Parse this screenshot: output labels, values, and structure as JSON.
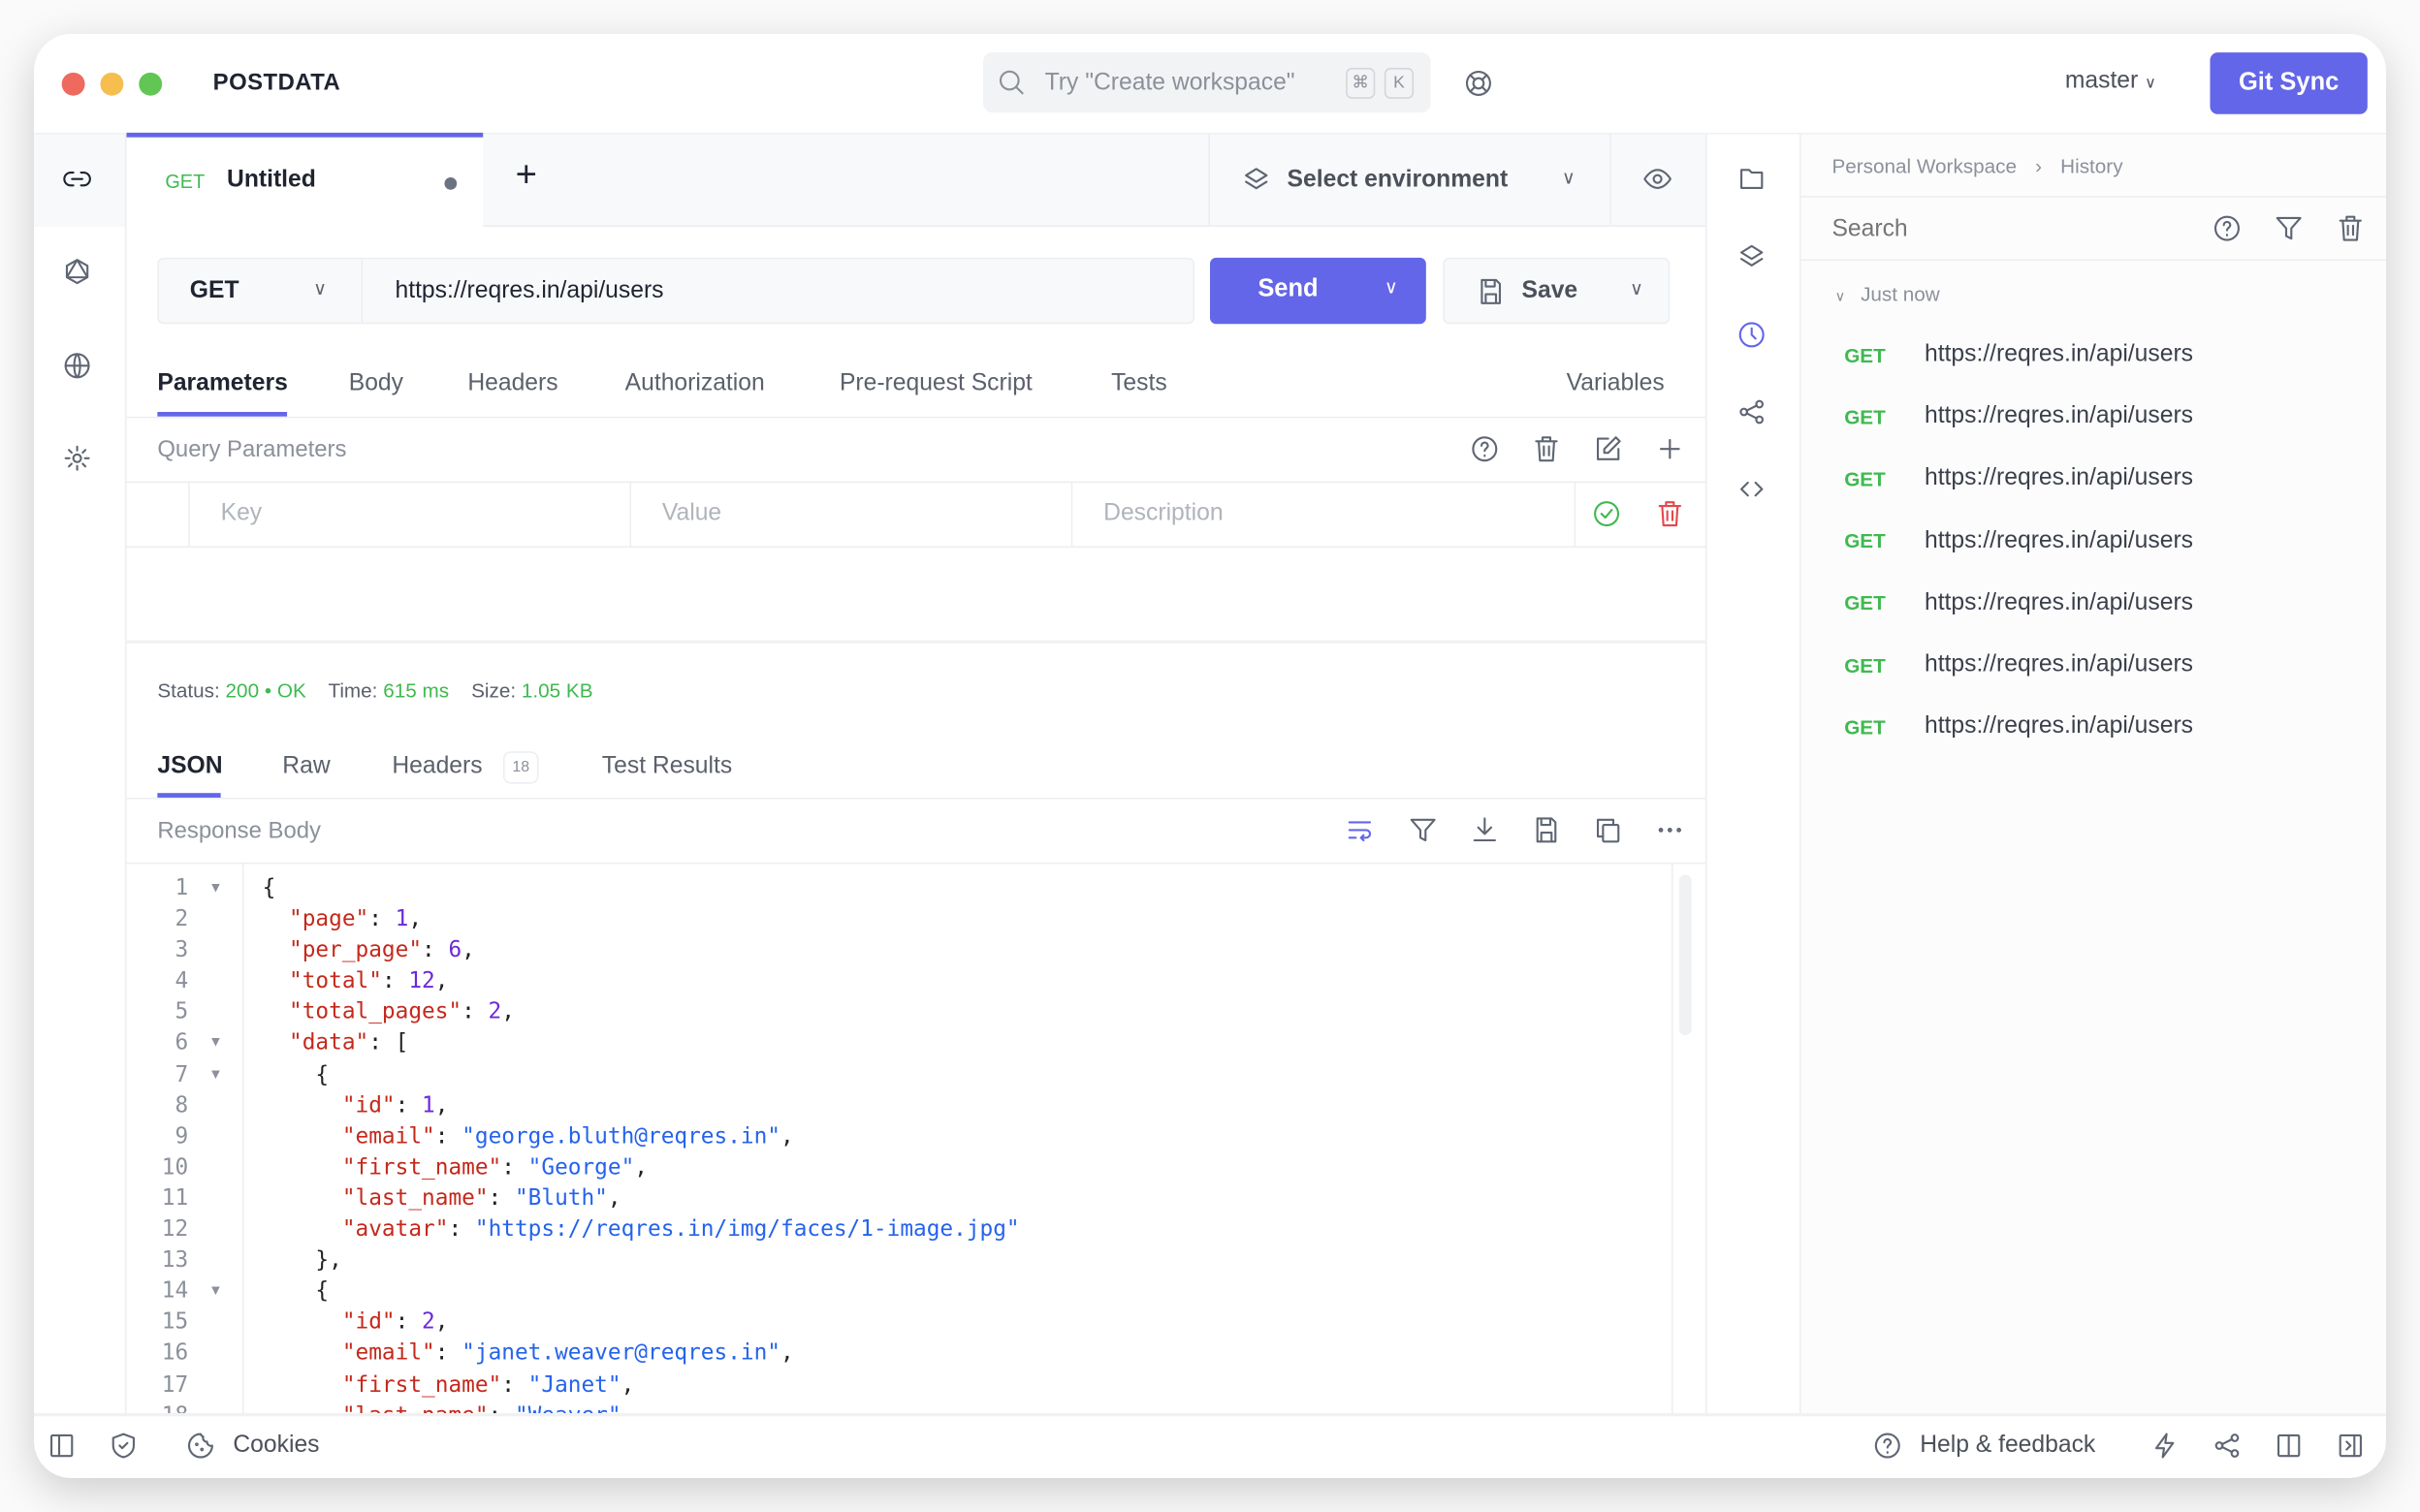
{
  "app": {
    "title": "POSTDATA",
    "search_placeholder": "Try \"Create workspace\"",
    "shortcut_cmd": "⌘",
    "shortcut_key": "K",
    "branch": "master",
    "git_sync": "Git Sync"
  },
  "request_tab": {
    "method": "GET",
    "name": "Untitled",
    "add": "+"
  },
  "environment": {
    "label": "Select environment"
  },
  "request": {
    "method": "GET",
    "url": "https://reqres.in/api/users",
    "send": "Send",
    "save": "Save"
  },
  "request_tabs": [
    "Parameters",
    "Body",
    "Headers",
    "Authorization",
    "Pre-request Script",
    "Tests"
  ],
  "variables": "Variables",
  "query": {
    "title": "Query Parameters",
    "key_ph": "Key",
    "value_ph": "Value",
    "desc_ph": "Description"
  },
  "status": {
    "status_label": "Status:",
    "code": "200",
    "dot": "•",
    "text": "OK",
    "time_label": "Time:",
    "time": "615 ms",
    "size_label": "Size:",
    "size": "1.05 KB"
  },
  "response_tabs": {
    "json": "JSON",
    "raw": "Raw",
    "headers": "Headers",
    "headers_count": "18",
    "tests": "Test Results"
  },
  "response_body": {
    "title": "Response Body"
  },
  "code_lines": [
    [
      [
        "p",
        "{"
      ]
    ],
    [
      [
        "p",
        "  "
      ],
      [
        "k",
        "\"page\""
      ],
      [
        "p",
        ": "
      ],
      [
        "n",
        "1"
      ],
      [
        "p",
        ","
      ]
    ],
    [
      [
        "p",
        "  "
      ],
      [
        "k",
        "\"per_page\""
      ],
      [
        "p",
        ": "
      ],
      [
        "n",
        "6"
      ],
      [
        "p",
        ","
      ]
    ],
    [
      [
        "p",
        "  "
      ],
      [
        "k",
        "\"total\""
      ],
      [
        "p",
        ": "
      ],
      [
        "n",
        "12"
      ],
      [
        "p",
        ","
      ]
    ],
    [
      [
        "p",
        "  "
      ],
      [
        "k",
        "\"total_pages\""
      ],
      [
        "p",
        ": "
      ],
      [
        "n",
        "2"
      ],
      [
        "p",
        ","
      ]
    ],
    [
      [
        "p",
        "  "
      ],
      [
        "k",
        "\"data\""
      ],
      [
        "p",
        ": ["
      ]
    ],
    [
      [
        "p",
        "    {"
      ]
    ],
    [
      [
        "p",
        "      "
      ],
      [
        "k",
        "\"id\""
      ],
      [
        "p",
        ": "
      ],
      [
        "n",
        "1"
      ],
      [
        "p",
        ","
      ]
    ],
    [
      [
        "p",
        "      "
      ],
      [
        "k",
        "\"email\""
      ],
      [
        "p",
        ": "
      ],
      [
        "s",
        "\"george.bluth@reqres.in\""
      ],
      [
        "p",
        ","
      ]
    ],
    [
      [
        "p",
        "      "
      ],
      [
        "k",
        "\"first_name\""
      ],
      [
        "p",
        ": "
      ],
      [
        "s",
        "\"George\""
      ],
      [
        "p",
        ","
      ]
    ],
    [
      [
        "p",
        "      "
      ],
      [
        "k",
        "\"last_name\""
      ],
      [
        "p",
        ": "
      ],
      [
        "s",
        "\"Bluth\""
      ],
      [
        "p",
        ","
      ]
    ],
    [
      [
        "p",
        "      "
      ],
      [
        "k",
        "\"avatar\""
      ],
      [
        "p",
        ": "
      ],
      [
        "s",
        "\"https://reqres.in/img/faces/1-image.jpg\""
      ]
    ],
    [
      [
        "p",
        "    },"
      ]
    ],
    [
      [
        "p",
        "    {"
      ]
    ],
    [
      [
        "p",
        "      "
      ],
      [
        "k",
        "\"id\""
      ],
      [
        "p",
        ": "
      ],
      [
        "n",
        "2"
      ],
      [
        "p",
        ","
      ]
    ],
    [
      [
        "p",
        "      "
      ],
      [
        "k",
        "\"email\""
      ],
      [
        "p",
        ": "
      ],
      [
        "s",
        "\"janet.weaver@reqres.in\""
      ],
      [
        "p",
        ","
      ]
    ],
    [
      [
        "p",
        "      "
      ],
      [
        "k",
        "\"first_name\""
      ],
      [
        "p",
        ": "
      ],
      [
        "s",
        "\"Janet\""
      ],
      [
        "p",
        ","
      ]
    ],
    [
      [
        "p",
        "      "
      ],
      [
        "k",
        "\"last_name\""
      ],
      [
        "p",
        ": "
      ],
      [
        "s",
        "\"Weaver\""
      ],
      [
        "p",
        ","
      ]
    ]
  ],
  "fold_lines": [
    1,
    6,
    7,
    14
  ],
  "history": {
    "breadcrumb_root": "Personal Workspace",
    "breadcrumb_current": "History",
    "search_placeholder": "Search",
    "group": "Just now",
    "items": [
      {
        "method": "GET",
        "url": "https://reqres.in/api/users"
      },
      {
        "method": "GET",
        "url": "https://reqres.in/api/users"
      },
      {
        "method": "GET",
        "url": "https://reqres.in/api/users"
      },
      {
        "method": "GET",
        "url": "https://reqres.in/api/users"
      },
      {
        "method": "GET",
        "url": "https://reqres.in/api/users"
      },
      {
        "method": "GET",
        "url": "https://reqres.in/api/users"
      },
      {
        "method": "GET",
        "url": "https://reqres.in/api/users"
      }
    ]
  },
  "footer": {
    "cookies": "Cookies",
    "help": "Help & feedback"
  },
  "colors": {
    "accent": "#6366e8",
    "success": "#3fb950",
    "key": "#c4291c",
    "number": "#6d28d9",
    "string": "#2563eb"
  }
}
